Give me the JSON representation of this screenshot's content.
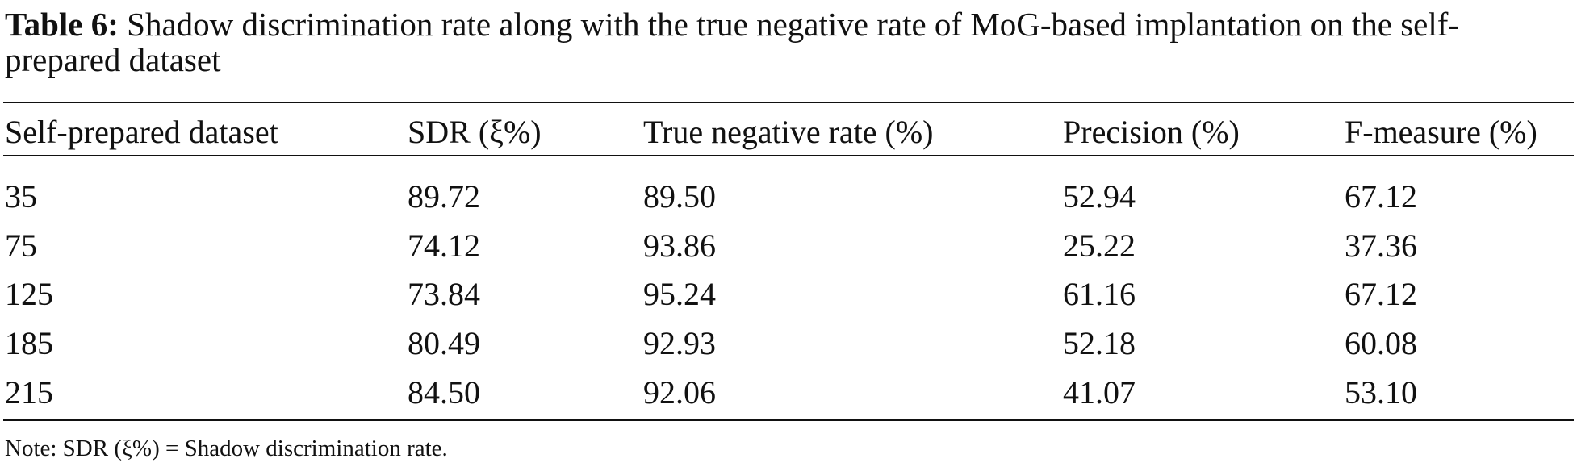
{
  "caption": {
    "label": "Table 6:",
    "text": "Shadow discrimination rate along with the true negative rate of MoG-based implantation on the self-prepared dataset"
  },
  "table": {
    "header": [
      "Self-prepared dataset",
      "SDR (ξ%)",
      "True negative rate (%)",
      "Precision (%)",
      "F-measure (%)"
    ],
    "rows": [
      [
        "35",
        "89.72",
        "89.50",
        "52.94",
        "67.12"
      ],
      [
        "75",
        "74.12",
        "93.86",
        "25.22",
        "37.36"
      ],
      [
        "125",
        "73.84",
        "95.24",
        "61.16",
        "67.12"
      ],
      [
        "185",
        "80.49",
        "92.93",
        "52.18",
        "60.08"
      ],
      [
        "215",
        "84.50",
        "92.06",
        "41.07",
        "53.10"
      ]
    ]
  },
  "note": "Note: SDR (ξ%) = Shadow discrimination rate."
}
